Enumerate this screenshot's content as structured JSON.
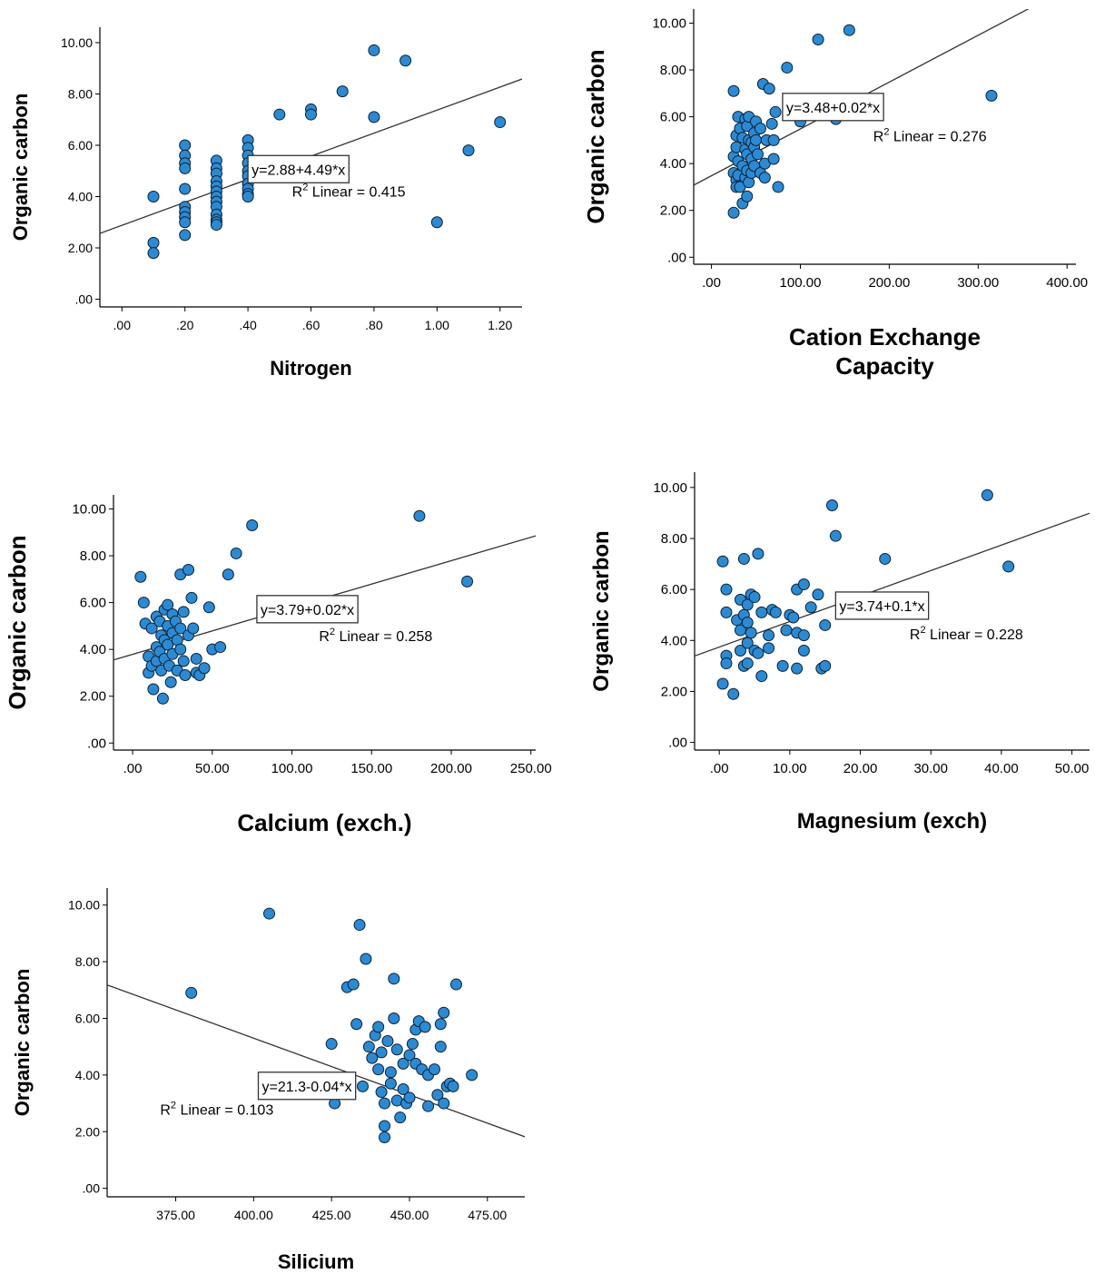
{
  "colors": {
    "marker": "#2a8bd4",
    "marker_stroke": "#0d1f33",
    "axis": "#000000",
    "fit_line": "#333333"
  },
  "chart_data": [
    {
      "id": "nitrogen",
      "type": "scatter",
      "xlabel": [
        "Nitrogen"
      ],
      "ylabel": "Organic carbon",
      "xticks": [
        0,
        0.2,
        0.4,
        0.6,
        0.8,
        1.0,
        1.2
      ],
      "xtick_labels": [
        ".00",
        ".20",
        ".40",
        ".60",
        ".80",
        "1.00",
        "1.20"
      ],
      "yticks": [
        0,
        2,
        4,
        6,
        8,
        10
      ],
      "ytick_labels": [
        ".00",
        "2.00",
        "4.00",
        "6.00",
        "8.00",
        "10.00"
      ],
      "xlim": [
        -0.07,
        1.27
      ],
      "ylim": [
        -0.3,
        10.6
      ],
      "fit": {
        "intercept": 2.88,
        "slope": 4.49
      },
      "equation": "y=2.88+4.49*x",
      "equation_at": [
        0.4,
        5.6
      ],
      "r2_label": "Linear = 0.415",
      "r2_at": [
        0.54,
        4.0
      ],
      "points": [
        [
          0.1,
          4.0
        ],
        [
          0.1,
          2.2
        ],
        [
          0.1,
          1.8
        ],
        [
          0.2,
          6.0
        ],
        [
          0.2,
          5.6
        ],
        [
          0.2,
          5.3
        ],
        [
          0.2,
          5.1
        ],
        [
          0.2,
          4.3
        ],
        [
          0.2,
          3.6
        ],
        [
          0.2,
          3.4
        ],
        [
          0.2,
          3.2
        ],
        [
          0.2,
          3.0
        ],
        [
          0.2,
          2.5
        ],
        [
          0.3,
          5.4
        ],
        [
          0.3,
          5.1
        ],
        [
          0.3,
          4.9
        ],
        [
          0.3,
          4.6
        ],
        [
          0.3,
          4.4
        ],
        [
          0.3,
          4.2
        ],
        [
          0.3,
          4.0
        ],
        [
          0.3,
          3.8
        ],
        [
          0.3,
          3.6
        ],
        [
          0.3,
          3.3
        ],
        [
          0.3,
          3.1
        ],
        [
          0.3,
          3.0
        ],
        [
          0.3,
          2.9
        ],
        [
          0.4,
          6.2
        ],
        [
          0.4,
          5.9
        ],
        [
          0.4,
          5.6
        ],
        [
          0.4,
          5.3
        ],
        [
          0.4,
          5.0
        ],
        [
          0.4,
          4.8
        ],
        [
          0.4,
          4.5
        ],
        [
          0.4,
          4.3
        ],
        [
          0.4,
          4.1
        ],
        [
          0.4,
          4.0
        ],
        [
          0.5,
          7.2
        ],
        [
          0.6,
          7.4
        ],
        [
          0.6,
          7.2
        ],
        [
          0.7,
          8.1
        ],
        [
          0.8,
          9.7
        ],
        [
          0.8,
          7.1
        ],
        [
          0.9,
          9.3
        ],
        [
          1.0,
          3.0
        ],
        [
          1.1,
          5.8
        ],
        [
          1.2,
          6.9
        ]
      ]
    },
    {
      "id": "cec",
      "type": "scatter",
      "xlabel": [
        "Cation Exchange",
        "Capacity"
      ],
      "ylabel": "Organic carbon",
      "xticks": [
        0,
        100,
        200,
        300,
        400
      ],
      "xtick_labels": [
        ".00",
        "100.00",
        "200.00",
        "300.00",
        "400.00"
      ],
      "yticks": [
        0,
        2,
        4,
        6,
        8,
        10
      ],
      "ytick_labels": [
        ".00",
        "2.00",
        "4.00",
        "6.00",
        "8.00",
        "10.00"
      ],
      "xlim": [
        -20,
        410
      ],
      "ylim": [
        -0.3,
        10.6
      ],
      "fit": {
        "intercept": 3.48,
        "slope": 0.02
      },
      "equation": "y=3.48+0.02*x",
      "equation_at": [
        80,
        7.0
      ],
      "r2_label": "Linear = 0.276",
      "r2_at": [
        182,
        4.95
      ],
      "points": [
        [
          25,
          7.1
        ],
        [
          25,
          4.3
        ],
        [
          25,
          3.6
        ],
        [
          25,
          1.9
        ],
        [
          28,
          5.2
        ],
        [
          28,
          4.7
        ],
        [
          28,
          3.3
        ],
        [
          28,
          3.0
        ],
        [
          30,
          6.0
        ],
        [
          30,
          4.1
        ],
        [
          30,
          3.5
        ],
        [
          32,
          5.5
        ],
        [
          32,
          3.0
        ],
        [
          35,
          5.1
        ],
        [
          35,
          3.9
        ],
        [
          35,
          2.3
        ],
        [
          38,
          5.9
        ],
        [
          38,
          4.6
        ],
        [
          38,
          3.4
        ],
        [
          40,
          5.6
        ],
        [
          40,
          4.4
        ],
        [
          40,
          3.7
        ],
        [
          40,
          2.6
        ],
        [
          42,
          6.0
        ],
        [
          42,
          5.0
        ],
        [
          42,
          3.2
        ],
        [
          45,
          4.9
        ],
        [
          45,
          4.2
        ],
        [
          45,
          3.6
        ],
        [
          48,
          5.3
        ],
        [
          48,
          4.7
        ],
        [
          48,
          3.9
        ],
        [
          50,
          5.8
        ],
        [
          50,
          5.0
        ],
        [
          52,
          4.4
        ],
        [
          55,
          5.5
        ],
        [
          55,
          3.6
        ],
        [
          58,
          7.4
        ],
        [
          60,
          4.0
        ],
        [
          60,
          3.4
        ],
        [
          62,
          5.0
        ],
        [
          65,
          7.2
        ],
        [
          68,
          5.7
        ],
        [
          70,
          4.2
        ],
        [
          70,
          5.0
        ],
        [
          72,
          6.2
        ],
        [
          75,
          3.0
        ],
        [
          85,
          8.1
        ],
        [
          100,
          5.8
        ],
        [
          120,
          9.3
        ],
        [
          140,
          5.9
        ],
        [
          155,
          9.7
        ],
        [
          315,
          6.9
        ]
      ]
    },
    {
      "id": "calcium",
      "type": "scatter",
      "xlabel": [
        "Calcium (exch.)"
      ],
      "ylabel": "Organic carbon",
      "xticks": [
        0,
        50,
        100,
        150,
        200,
        250
      ],
      "xtick_labels": [
        ".00",
        "50.00",
        "100.00",
        "150.00",
        "200.00",
        "250.00"
      ],
      "yticks": [
        0,
        2,
        4,
        6,
        8,
        10
      ],
      "ytick_labels": [
        ".00",
        "2.00",
        "4.00",
        "6.00",
        "8.00",
        "10.00"
      ],
      "xlim": [
        -12,
        253
      ],
      "ylim": [
        -0.3,
        10.6
      ],
      "fit": {
        "intercept": 3.79,
        "slope": 0.02
      },
      "equation": "y=3.79+0.02*x",
      "equation_at": [
        78,
        6.3
      ],
      "r2_label": "Linear = 0.258",
      "r2_at": [
        117,
        4.35
      ],
      "points": [
        [
          5,
          7.1
        ],
        [
          7,
          6.0
        ],
        [
          8,
          5.1
        ],
        [
          10,
          3.7
        ],
        [
          10,
          3.0
        ],
        [
          12,
          4.9
        ],
        [
          12,
          3.3
        ],
        [
          13,
          2.3
        ],
        [
          15,
          5.4
        ],
        [
          15,
          4.1
        ],
        [
          15,
          3.5
        ],
        [
          17,
          5.2
        ],
        [
          17,
          3.9
        ],
        [
          18,
          4.6
        ],
        [
          18,
          3.1
        ],
        [
          19,
          1.9
        ],
        [
          20,
          5.7
        ],
        [
          20,
          4.4
        ],
        [
          20,
          3.6
        ],
        [
          22,
          5.9
        ],
        [
          22,
          5.0
        ],
        [
          22,
          4.2
        ],
        [
          23,
          3.3
        ],
        [
          24,
          2.6
        ],
        [
          25,
          5.5
        ],
        [
          25,
          4.7
        ],
        [
          25,
          3.8
        ],
        [
          27,
          5.2
        ],
        [
          28,
          4.4
        ],
        [
          28,
          3.1
        ],
        [
          30,
          7.2
        ],
        [
          30,
          4.9
        ],
        [
          30,
          4.0
        ],
        [
          32,
          5.6
        ],
        [
          32,
          3.5
        ],
        [
          33,
          2.9
        ],
        [
          35,
          7.4
        ],
        [
          35,
          4.6
        ],
        [
          37,
          6.2
        ],
        [
          38,
          4.9
        ],
        [
          40,
          3.6
        ],
        [
          40,
          3.0
        ],
        [
          42,
          2.9
        ],
        [
          45,
          3.2
        ],
        [
          48,
          5.8
        ],
        [
          50,
          4.0
        ],
        [
          55,
          4.1
        ],
        [
          60,
          7.2
        ],
        [
          65,
          8.1
        ],
        [
          75,
          9.3
        ],
        [
          180,
          9.7
        ],
        [
          210,
          6.9
        ]
      ]
    },
    {
      "id": "magnesium",
      "type": "scatter",
      "xlabel": [
        "Magnesium (exch)"
      ],
      "ylabel": "Organic carbon",
      "xticks": [
        0,
        10,
        20,
        30,
        40,
        50
      ],
      "xtick_labels": [
        ".00",
        "10.00",
        "20.00",
        "30.00",
        "40.00",
        "50.00"
      ],
      "yticks": [
        0,
        2,
        4,
        6,
        8,
        10
      ],
      "ytick_labels": [
        ".00",
        "2.00",
        "4.00",
        "6.00",
        "8.00",
        "10.00"
      ],
      "xlim": [
        -3.5,
        52.5
      ],
      "ylim": [
        -0.3,
        10.6
      ],
      "fit": {
        "intercept": 3.74,
        "slope": 0.1
      },
      "equation": "y=3.74+0.1*x",
      "equation_at": [
        16.5,
        5.9
      ],
      "r2_label": "Linear = 0.228",
      "r2_at": [
        27,
        4.05
      ],
      "points": [
        [
          0.5,
          7.1
        ],
        [
          0.5,
          2.3
        ],
        [
          1,
          6.0
        ],
        [
          1,
          5.1
        ],
        [
          1,
          3.4
        ],
        [
          1,
          3.1
        ],
        [
          2,
          1.9
        ],
        [
          2.5,
          4.8
        ],
        [
          3,
          5.6
        ],
        [
          3,
          4.4
        ],
        [
          3,
          3.6
        ],
        [
          3.5,
          7.2
        ],
        [
          3.5,
          5.0
        ],
        [
          3.5,
          3.0
        ],
        [
          4,
          5.4
        ],
        [
          4,
          4.7
        ],
        [
          4,
          3.9
        ],
        [
          4,
          3.1
        ],
        [
          4.5,
          5.8
        ],
        [
          4.5,
          4.3
        ],
        [
          5,
          5.7
        ],
        [
          5,
          3.6
        ],
        [
          5.5,
          7.4
        ],
        [
          5.5,
          3.5
        ],
        [
          6,
          5.1
        ],
        [
          6,
          2.6
        ],
        [
          7,
          4.2
        ],
        [
          7,
          3.7
        ],
        [
          7.5,
          5.2
        ],
        [
          8,
          5.1
        ],
        [
          9,
          3.0
        ],
        [
          9.5,
          4.4
        ],
        [
          10,
          5.0
        ],
        [
          10.5,
          4.9
        ],
        [
          11,
          6.0
        ],
        [
          11,
          4.3
        ],
        [
          11,
          2.9
        ],
        [
          12,
          6.2
        ],
        [
          12,
          4.2
        ],
        [
          12,
          3.6
        ],
        [
          13,
          5.3
        ],
        [
          14,
          5.8
        ],
        [
          14.5,
          2.9
        ],
        [
          15,
          4.6
        ],
        [
          15,
          3.0
        ],
        [
          16,
          9.3
        ],
        [
          16.5,
          8.1
        ],
        [
          18,
          5.2
        ],
        [
          23.5,
          7.2
        ],
        [
          38,
          9.7
        ],
        [
          41,
          6.9
        ]
      ]
    },
    {
      "id": "silicium",
      "type": "scatter",
      "xlabel": [
        "Silicium"
      ],
      "ylabel": "Organic carbon",
      "xticks": [
        375,
        400,
        425,
        450,
        475
      ],
      "xtick_labels": [
        "375.00",
        "400.00",
        "425.00",
        "450.00",
        "475.00"
      ],
      "yticks": [
        0,
        2,
        4,
        6,
        8,
        10
      ],
      "ytick_labels": [
        ".00",
        "2.00",
        "4.00",
        "6.00",
        "8.00",
        "10.00"
      ],
      "xlim": [
        353,
        487
      ],
      "ylim": [
        -0.3,
        10.6
      ],
      "fit": {
        "intercept": 21.3,
        "slope": -0.04
      },
      "equation": "y=21.3-0.04*x",
      "equation_at": [
        401.5,
        4.1
      ],
      "r2_label": "Linear = 0.103",
      "r2_at": [
        370,
        2.6
      ],
      "points": [
        [
          380,
          6.9
        ],
        [
          405,
          9.7
        ],
        [
          425,
          5.1
        ],
        [
          426,
          3.6
        ],
        [
          426,
          3.0
        ],
        [
          430,
          7.1
        ],
        [
          432,
          7.2
        ],
        [
          433,
          5.8
        ],
        [
          434,
          9.3
        ],
        [
          435,
          3.6
        ],
        [
          436,
          8.1
        ],
        [
          437,
          5.0
        ],
        [
          438,
          4.6
        ],
        [
          439,
          5.4
        ],
        [
          440,
          5.7
        ],
        [
          440,
          4.2
        ],
        [
          441,
          4.8
        ],
        [
          441,
          3.4
        ],
        [
          442,
          3.0
        ],
        [
          442,
          2.2
        ],
        [
          442,
          1.8
        ],
        [
          443,
          5.2
        ],
        [
          444,
          4.1
        ],
        [
          444,
          3.7
        ],
        [
          445,
          7.4
        ],
        [
          445,
          6.0
        ],
        [
          446,
          4.9
        ],
        [
          446,
          3.1
        ],
        [
          447,
          2.5
        ],
        [
          448,
          4.4
        ],
        [
          448,
          3.5
        ],
        [
          449,
          3.0
        ],
        [
          450,
          4.7
        ],
        [
          450,
          3.2
        ],
        [
          451,
          5.1
        ],
        [
          452,
          5.6
        ],
        [
          452,
          4.4
        ],
        [
          453,
          5.9
        ],
        [
          454,
          4.2
        ],
        [
          455,
          5.7
        ],
        [
          456,
          4.0
        ],
        [
          456,
          2.9
        ],
        [
          458,
          4.2
        ],
        [
          459,
          3.3
        ],
        [
          460,
          5.8
        ],
        [
          460,
          5.0
        ],
        [
          461,
          6.2
        ],
        [
          461,
          3.0
        ],
        [
          462,
          3.6
        ],
        [
          463,
          3.7
        ],
        [
          464,
          3.6
        ],
        [
          465,
          7.2
        ],
        [
          470,
          4.0
        ]
      ]
    }
  ]
}
